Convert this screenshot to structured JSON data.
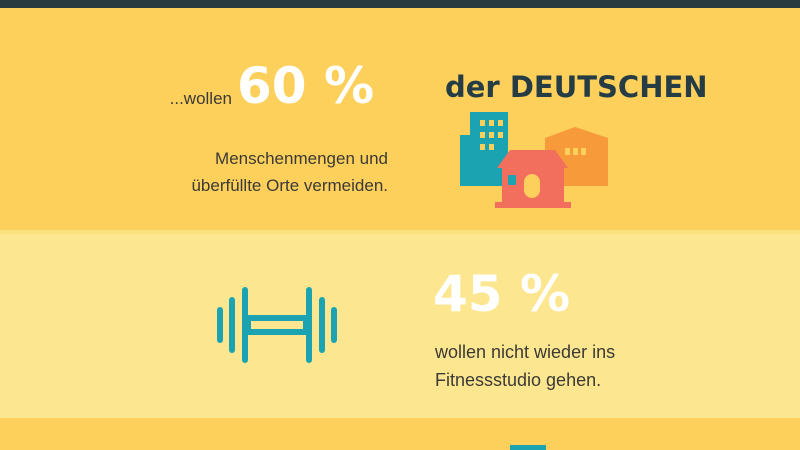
{
  "sections": [
    {
      "intro": "...wollen",
      "percent": "60 %",
      "group": "der DEUTSCHEN",
      "text_lines": [
        "Menschenmengen und",
        "überfüllte Orte vermeiden."
      ]
    },
    {
      "percent": "45 %",
      "text_lines": [
        "wollen nicht wieder ins",
        "Fitnessstudio gehen."
      ]
    }
  ]
}
